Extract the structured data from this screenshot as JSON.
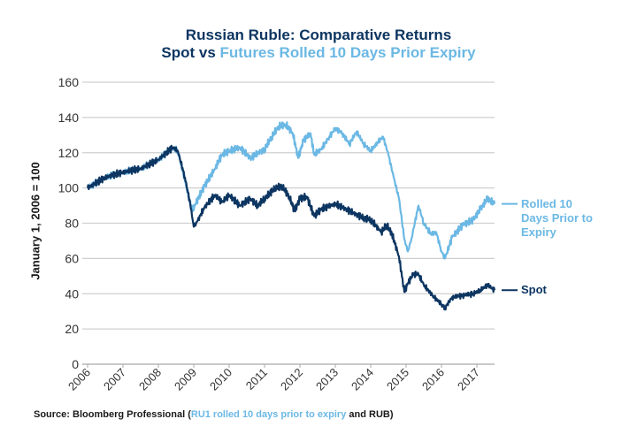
{
  "chart_data": {
    "type": "line",
    "title": "Russian Ruble: Comparative Returns",
    "subtitle_parts": [
      {
        "text": "Spot vs ",
        "color": "#0d3561"
      },
      {
        "text": "Futures Rolled 10 Days Prior Expiry",
        "color": "#6bb8e4"
      }
    ],
    "xlabel": "",
    "ylabel": "January 1, 2006 = 100",
    "xlim": [
      2006,
      2017.5
    ],
    "ylim": [
      0,
      160
    ],
    "x_ticks": [
      "2006",
      "2007",
      "2008",
      "2009",
      "2010",
      "2011",
      "2012",
      "2013",
      "2014",
      "2015",
      "2016",
      "2017"
    ],
    "y_ticks": [
      0,
      20,
      40,
      60,
      80,
      100,
      120,
      140,
      160
    ],
    "grid": "horizontal",
    "legend": "right (line-end labels)",
    "series": [
      {
        "name": "Rolled 10 Days Prior to Expiry",
        "label_lines": [
          "Rolled 10",
          "Days Prior to",
          "Expiry"
        ],
        "color": "#6bb8e4",
        "x": [
          2006.0,
          2006.5,
          2007.0,
          2007.5,
          2008.0,
          2008.4,
          2008.55,
          2008.7,
          2008.8,
          2008.95,
          2009.05,
          2009.3,
          2009.6,
          2009.8,
          2010.0,
          2010.3,
          2010.6,
          2010.9,
          2011.0,
          2011.2,
          2011.4,
          2011.6,
          2011.8,
          2011.95,
          2012.1,
          2012.3,
          2012.4,
          2012.6,
          2012.8,
          2013.0,
          2013.2,
          2013.4,
          2013.6,
          2013.8,
          2014.0,
          2014.2,
          2014.35,
          2014.5,
          2014.65,
          2014.8,
          2014.95,
          2015.05,
          2015.15,
          2015.35,
          2015.5,
          2015.7,
          2015.85,
          2016.0,
          2016.1,
          2016.3,
          2016.6,
          2016.9,
          2017.1,
          2017.3,
          2017.5
        ],
        "values": [
          100,
          106,
          109,
          111,
          116,
          123,
          121,
          109,
          100,
          87,
          91,
          101,
          111,
          119,
          121,
          123,
          117,
          121,
          122,
          129,
          135,
          136,
          131,
          117,
          127,
          131,
          119,
          122,
          128,
          134,
          131,
          125,
          132,
          125,
          121,
          126,
          129,
          119,
          106,
          94,
          71,
          64,
          71,
          90,
          80,
          74,
          75,
          64,
          60,
          72,
          79,
          82,
          88,
          94,
          91
        ]
      },
      {
        "name": "Spot",
        "label_lines": [
          "Spot"
        ],
        "color": "#0d3561",
        "x": [
          2006.0,
          2006.5,
          2007.0,
          2007.5,
          2008.0,
          2008.4,
          2008.55,
          2008.75,
          2008.9,
          2009.0,
          2009.1,
          2009.3,
          2009.6,
          2009.8,
          2010.0,
          2010.3,
          2010.6,
          2010.8,
          2011.0,
          2011.3,
          2011.5,
          2011.7,
          2011.85,
          2012.0,
          2012.2,
          2012.4,
          2012.6,
          2013.0,
          2013.3,
          2013.6,
          2013.8,
          2014.0,
          2014.3,
          2014.45,
          2014.6,
          2014.8,
          2014.95,
          2015.05,
          2015.2,
          2015.35,
          2015.5,
          2015.75,
          2016.0,
          2016.1,
          2016.3,
          2016.6,
          2016.9,
          2017.1,
          2017.3,
          2017.5
        ],
        "values": [
          100,
          106,
          109,
          111,
          116,
          123,
          121,
          106,
          91,
          78,
          81,
          89,
          96,
          92,
          96,
          90,
          94,
          90,
          94,
          100,
          101,
          95,
          87,
          94,
          95,
          84,
          88,
          91,
          88,
          85,
          83,
          82,
          75,
          79,
          74,
          61,
          41,
          46,
          51,
          51,
          45,
          39,
          34,
          32,
          38,
          39,
          40,
          42,
          45,
          42
        ]
      }
    ],
    "source_parts": [
      {
        "text": "Source: Bloomberg Professional (",
        "color": "#1a1a1a"
      },
      {
        "text": "RU1 rolled 10 days prior to expiry",
        "color": "#6bb8e4"
      },
      {
        "text": " and RUB)",
        "color": "#1a1a1a"
      }
    ]
  }
}
